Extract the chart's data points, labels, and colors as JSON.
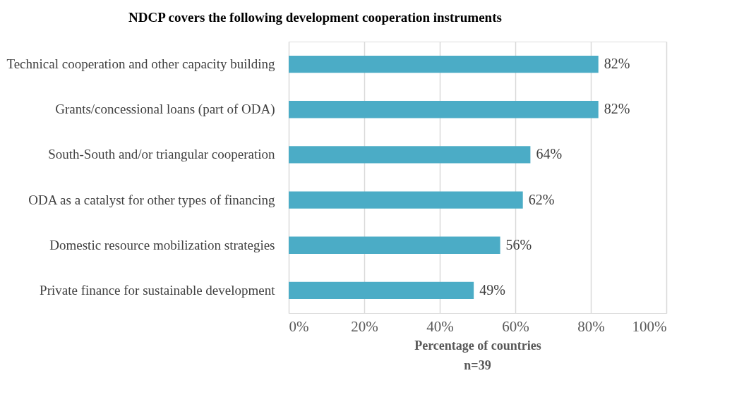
{
  "chart_data": {
    "type": "bar",
    "orientation": "horizontal",
    "title": "NDCP covers the following development cooperation instruments",
    "categories": [
      "Technical cooperation and other capacity building",
      "Grants/concessional loans (part of ODA)",
      "South-South and/or triangular cooperation",
      "ODA as a catalyst for other types of financing",
      "Domestic resource mobilization strategies",
      "Private finance for sustainable development"
    ],
    "values": [
      82,
      82,
      64,
      62,
      56,
      49
    ],
    "value_labels": [
      "82%",
      "82%",
      "64%",
      "62%",
      "56%",
      "49%"
    ],
    "color": "#4bacc6",
    "xlim": [
      0,
      100
    ],
    "xticks": [
      {
        "value": 0,
        "label": "0%"
      },
      {
        "value": 20,
        "label": "20%"
      },
      {
        "value": 40,
        "label": "40%"
      },
      {
        "value": 60,
        "label": "60%"
      },
      {
        "value": 80,
        "label": "80%"
      },
      {
        "value": 100,
        "label": "100%"
      }
    ],
    "xlabel": "Percentage of countries",
    "annotations": [
      "n=39"
    ],
    "grid": "x"
  }
}
